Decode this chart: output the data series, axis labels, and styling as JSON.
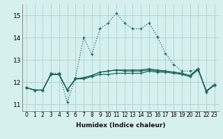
{
  "background_color": "#d6f0f0",
  "grid_color": "#aed0cc",
  "line_color": "#1a6b5a",
  "x_label": "Humidex (Indice chaleur)",
  "ylim": [
    10.7,
    15.5
  ],
  "xlim": [
    -0.5,
    23.5
  ],
  "yticks": [
    11,
    12,
    13,
    14,
    15
  ],
  "xticks": [
    0,
    1,
    2,
    3,
    4,
    5,
    6,
    7,
    8,
    9,
    10,
    11,
    12,
    13,
    14,
    15,
    16,
    17,
    18,
    19,
    20,
    21,
    22,
    23
  ],
  "line1_y": [
    11.75,
    11.65,
    11.65,
    12.4,
    12.4,
    11.1,
    12.2,
    14.0,
    13.25,
    14.4,
    14.65,
    15.1,
    14.65,
    14.4,
    14.4,
    14.65,
    14.05,
    13.3,
    12.8,
    12.5,
    12.5,
    12.6,
    11.55,
    11.9
  ],
  "line2_y": [
    11.75,
    11.65,
    11.65,
    12.35,
    12.35,
    11.65,
    12.15,
    12.15,
    12.25,
    12.35,
    12.35,
    12.4,
    12.4,
    12.4,
    12.4,
    12.5,
    12.45,
    12.45,
    12.4,
    12.35,
    12.25,
    12.55,
    11.6,
    11.85
  ],
  "line3_y": [
    11.75,
    11.65,
    11.65,
    12.35,
    12.35,
    11.65,
    12.15,
    12.2,
    12.3,
    12.45,
    12.5,
    12.55,
    12.5,
    12.5,
    12.5,
    12.55,
    12.5,
    12.5,
    12.45,
    12.4,
    12.3,
    12.6,
    11.6,
    11.9
  ],
  "line4_y": [
    11.75,
    11.65,
    11.65,
    12.35,
    12.35,
    11.65,
    12.15,
    12.2,
    12.3,
    12.45,
    12.5,
    12.55,
    12.55,
    12.55,
    12.55,
    12.6,
    12.55,
    12.5,
    12.45,
    12.4,
    12.3,
    12.6,
    11.6,
    11.9
  ]
}
